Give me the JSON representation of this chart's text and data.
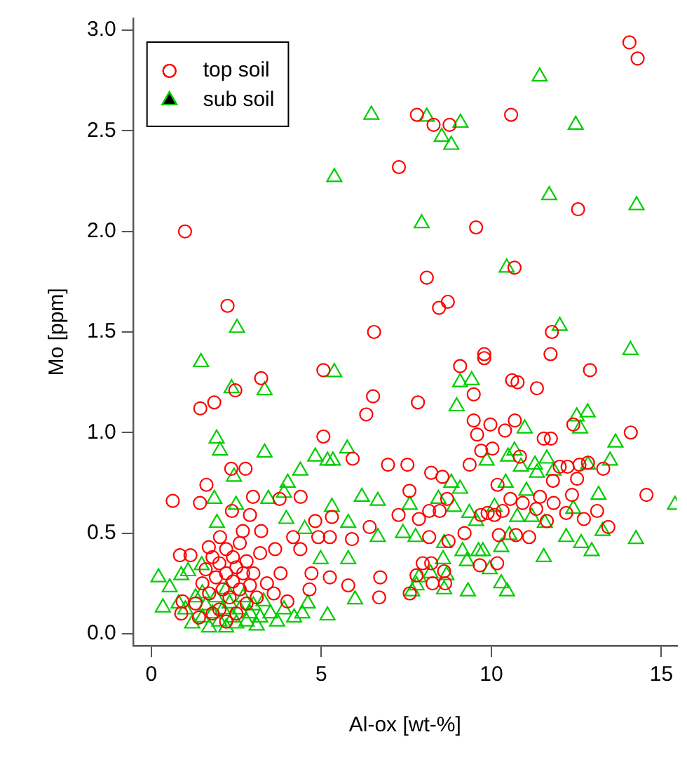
{
  "chart_data": {
    "type": "scatter",
    "xlabel": "Al-ox [wt-%]",
    "ylabel": "Mo [ppm]",
    "xlim": [
      -0.54,
      15.46
    ],
    "ylim": [
      -0.06,
      3.06
    ],
    "xticks": [
      0,
      5,
      10,
      15
    ],
    "yticks": [
      {
        "value": 0,
        "label": "0.0"
      },
      {
        "value": 0.5,
        "label": "0.5"
      },
      {
        "value": 1,
        "label": "1.0"
      },
      {
        "value": 1.5,
        "label": "1.5"
      },
      {
        "value": 2,
        "label": "2.0"
      },
      {
        "value": 2.5,
        "label": "2.5"
      },
      {
        "value": 3,
        "label": "3.0"
      }
    ],
    "grid": false,
    "legend": "top left",
    "series": [
      {
        "name": "top soil",
        "color": "#ff0000",
        "marker": "circle",
        "x": [
          0.99,
          2.24,
          6.55,
          7.28,
          14.06,
          14.3,
          7.81,
          8.3,
          8.77,
          10.58,
          12.55,
          9.55,
          8.1,
          8.46,
          8.72,
          10.68,
          11.78,
          9.79,
          11.74,
          3.23,
          2.47,
          1.44,
          1.85,
          5.06,
          6.52,
          6.32,
          5.06,
          5.92,
          6.96,
          2.35,
          2.77,
          1.62,
          0.63,
          1.43,
          2.99,
          4.39,
          3.77,
          2.37,
          2.9,
          4.82,
          5.31,
          6.42,
          7.27,
          4.17,
          4.91,
          5.25,
          5.9,
          0.84,
          1.15,
          1.69,
          2.69,
          3.23,
          3.64,
          4.38,
          4.71,
          5.25,
          4.65,
          5.79,
          6.7,
          6.73,
          0.92,
          0.88,
          2.02,
          9.08,
          9.79,
          10.61,
          10.77,
          9.48,
          11.34,
          12.9,
          7.84,
          9.48,
          9.97,
          10.69,
          9.58,
          10.4,
          12.41,
          14.1,
          11.54,
          11.75,
          9.7,
          10.03,
          10.84,
          9.36,
          7.53,
          8.23,
          8.56,
          12.01,
          12.24,
          12.59,
          12.84,
          13.29,
          12.52,
          11.81,
          10.18,
          7.59,
          14.56,
          12.37,
          8.7,
          10.56,
          10.92,
          11.43,
          11.83,
          13.11,
          12.2,
          12.72,
          13.44,
          9.69,
          9.89,
          10.09,
          10.33,
          8.17,
          8.48,
          7.87,
          11.32,
          11.63,
          10.22,
          10.72,
          11.11,
          9.21,
          8.17,
          8.74,
          9.66,
          10.17,
          7.98,
          8.23,
          8.61,
          7.8,
          8.27,
          8.64,
          7.6,
          1.3,
          1.5,
          1.6,
          1.7,
          1.8,
          1.9,
          2.0,
          2.0,
          2.1,
          2.2,
          2.2,
          2.3,
          2.4,
          2.4,
          2.5,
          2.5,
          2.6,
          2.6,
          2.7,
          2.8,
          2.8,
          2.9,
          3.0,
          3.1,
          3.2,
          3.4,
          3.6,
          1.4,
          1.8,
          2.2,
          3.8,
          4.0
        ],
        "values": [
          2.0,
          1.63,
          1.5,
          2.32,
          2.94,
          2.86,
          2.58,
          2.53,
          2.53,
          2.58,
          2.11,
          2.02,
          1.77,
          1.62,
          1.65,
          1.82,
          1.5,
          1.39,
          1.39,
          1.27,
          1.21,
          1.12,
          1.15,
          1.31,
          1.18,
          1.09,
          0.98,
          0.87,
          0.84,
          0.82,
          0.82,
          0.74,
          0.66,
          0.65,
          0.68,
          0.68,
          0.67,
          0.61,
          0.59,
          0.56,
          0.58,
          0.53,
          0.59,
          0.48,
          0.48,
          0.48,
          0.47,
          0.39,
          0.39,
          0.43,
          0.51,
          0.51,
          0.42,
          0.42,
          0.3,
          0.28,
          0.22,
          0.24,
          0.18,
          0.28,
          0.16,
          0.1,
          0.48,
          1.33,
          1.37,
          1.26,
          1.25,
          1.19,
          1.22,
          1.31,
          1.15,
          1.06,
          1.04,
          1.06,
          0.99,
          1.01,
          1.04,
          1.0,
          0.97,
          0.97,
          0.91,
          0.92,
          0.88,
          0.84,
          0.84,
          0.8,
          0.78,
          0.83,
          0.83,
          0.84,
          0.85,
          0.82,
          0.77,
          0.76,
          0.74,
          0.71,
          0.69,
          0.69,
          0.67,
          0.67,
          0.65,
          0.68,
          0.65,
          0.61,
          0.6,
          0.57,
          0.53,
          0.59,
          0.6,
          0.59,
          0.61,
          0.61,
          0.61,
          0.57,
          0.62,
          0.56,
          0.49,
          0.49,
          0.48,
          0.5,
          0.48,
          0.46,
          0.34,
          0.35,
          0.35,
          0.35,
          0.31,
          0.29,
          0.25,
          0.25,
          0.2,
          0.15,
          0.25,
          0.32,
          0.2,
          0.38,
          0.28,
          0.12,
          0.35,
          0.22,
          0.42,
          0.3,
          0.18,
          0.26,
          0.38,
          0.33,
          0.1,
          0.22,
          0.45,
          0.3,
          0.15,
          0.36,
          0.24,
          0.3,
          0.18,
          0.4,
          0.25,
          0.2,
          0.08,
          0.1,
          0.06,
          0.3,
          0.16
        ]
      },
      {
        "name": "sub soil",
        "color": "#00cd00",
        "marker": "triangle",
        "x": [
          6.47,
          5.38,
          2.52,
          11.42,
          8.1,
          9.09,
          8.54,
          8.82,
          12.48,
          11.7,
          14.27,
          7.95,
          10.45,
          12.01,
          14.09,
          1.46,
          2.36,
          3.33,
          5.38,
          1.92,
          2.02,
          3.33,
          4.82,
          5.18,
          5.34,
          5.76,
          4.38,
          2.43,
          4.01,
          3.9,
          1.85,
          2.49,
          3.44,
          6.19,
          6.66,
          5.31,
          1.93,
          3.97,
          4.51,
          5.79,
          6.66,
          0.21,
          0.54,
          0.34,
          0.88,
          1.08,
          1.48,
          4.44,
          5.18,
          4.98,
          5.79,
          5.99,
          9.08,
          9.42,
          8.98,
          12.51,
          12.83,
          12.61,
          10.98,
          13.65,
          13.49,
          10.68,
          10.49,
          9.86,
          10.87,
          11.28,
          11.63,
          11.34,
          11.83,
          12.84,
          8.82,
          9.08,
          10.42,
          11.03,
          13.15,
          15.4,
          8.44,
          8.9,
          7.6,
          10.09,
          10.76,
          11.19,
          12.41,
          11.57,
          9.35,
          9.55,
          7.4,
          7.77,
          8.61,
          12.2,
          12.64,
          12.95,
          13.27,
          14.25,
          10.29,
          10.53,
          9.15,
          9.62,
          9.75,
          9.28,
          8.58,
          11.54,
          9.95,
          8.21,
          8.68,
          7.87,
          10.29,
          10.46,
          9.31,
          8.61,
          7.67,
          7.8,
          1.0,
          1.2,
          1.3,
          1.5,
          1.6,
          1.7,
          1.8,
          1.9,
          2.0,
          2.1,
          2.2,
          2.3,
          2.4,
          2.5,
          2.6,
          2.7,
          2.8,
          2.9,
          3.0,
          3.1,
          3.2,
          3.3,
          3.5,
          3.7,
          3.9,
          4.2,
          4.6,
          2.2,
          1.5,
          0.8
        ],
        "values": [
          2.58,
          2.27,
          1.52,
          2.77,
          2.57,
          2.54,
          2.47,
          2.43,
          2.53,
          2.18,
          2.13,
          2.04,
          1.82,
          1.53,
          1.41,
          1.35,
          1.22,
          1.21,
          1.3,
          0.97,
          0.91,
          0.9,
          0.88,
          0.86,
          0.86,
          0.92,
          0.81,
          0.78,
          0.75,
          0.7,
          0.67,
          0.64,
          0.67,
          0.68,
          0.66,
          0.63,
          0.55,
          0.57,
          0.52,
          0.55,
          0.48,
          0.28,
          0.23,
          0.13,
          0.29,
          0.31,
          0.34,
          0.1,
          0.09,
          0.37,
          0.37,
          0.17,
          1.25,
          1.26,
          1.13,
          1.08,
          1.1,
          1.02,
          1.02,
          0.95,
          0.86,
          0.91,
          0.88,
          0.86,
          0.83,
          0.84,
          0.87,
          0.8,
          0.81,
          0.84,
          0.75,
          0.72,
          0.75,
          0.71,
          0.69,
          0.64,
          0.67,
          0.63,
          0.64,
          0.63,
          0.58,
          0.58,
          0.62,
          0.55,
          0.6,
          0.56,
          0.5,
          0.48,
          0.45,
          0.48,
          0.45,
          0.41,
          0.51,
          0.47,
          0.43,
          0.49,
          0.41,
          0.41,
          0.41,
          0.36,
          0.37,
          0.38,
          0.32,
          0.3,
          0.29,
          0.28,
          0.25,
          0.21,
          0.21,
          0.22,
          0.21,
          0.24,
          0.12,
          0.05,
          0.18,
          0.08,
          0.14,
          0.03,
          0.1,
          0.18,
          0.06,
          0.12,
          0.03,
          0.15,
          0.08,
          0.05,
          0.12,
          0.18,
          0.06,
          0.1,
          0.14,
          0.04,
          0.08,
          0.16,
          0.1,
          0.06,
          0.12,
          0.08,
          0.15,
          0.22,
          0.2,
          0.15
        ]
      }
    ]
  }
}
